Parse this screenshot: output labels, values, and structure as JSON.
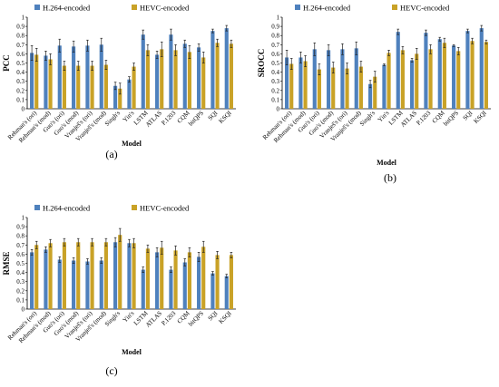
{
  "chart_data": [
    {
      "type": "bar",
      "panel_label": "(a)",
      "title": "",
      "xlabel": "Model",
      "ylabel": "PCC",
      "ylim": [
        0,
        1.0
      ],
      "yticks": [
        "0",
        "0.1",
        "0.2",
        "0.3",
        "0.4",
        "0.5",
        "0.6",
        "0.7",
        "0.8",
        "0.9",
        "1"
      ],
      "grid": false,
      "legend_position": "top",
      "categories": [
        "Rehman's (ori)",
        "Rehman's (mod)",
        "Guo's (ori)",
        "Guo's (mod)",
        "Vranješ's (ori)",
        "Vranješ's (mod)",
        "Singh's",
        "Yin's",
        "LSTM",
        "ATLAS",
        "P.1203",
        "CQM",
        "bitQPS",
        "SQI",
        "KSQI"
      ],
      "series": [
        {
          "name": "H.264-encoded",
          "color": "#4f81bd",
          "values": [
            0.61,
            0.58,
            0.69,
            0.68,
            0.69,
            0.7,
            0.25,
            0.32,
            0.81,
            0.59,
            0.81,
            0.71,
            0.67,
            0.85,
            0.88
          ],
          "errors": [
            0.08,
            0.05,
            0.07,
            0.06,
            0.06,
            0.07,
            0.04,
            0.03,
            0.05,
            0.04,
            0.06,
            0.04,
            0.04,
            0.02,
            0.03
          ]
        },
        {
          "name": "HEVC-encoded",
          "color": "#c9a227",
          "values": [
            0.59,
            0.54,
            0.47,
            0.47,
            0.47,
            0.48,
            0.22,
            0.46,
            0.64,
            0.65,
            0.64,
            0.62,
            0.56,
            0.72,
            0.71
          ],
          "errors": [
            0.07,
            0.06,
            0.05,
            0.05,
            0.05,
            0.05,
            0.06,
            0.04,
            0.06,
            0.08,
            0.06,
            0.07,
            0.06,
            0.04,
            0.04
          ]
        }
      ]
    },
    {
      "type": "bar",
      "panel_label": "(b)",
      "title": "",
      "xlabel": "Model",
      "ylabel": "SROCC",
      "ylim": [
        0,
        1.0
      ],
      "yticks": [
        "0",
        "0.1",
        "0.2",
        "0.3",
        "0.4",
        "0.5",
        "0.6",
        "0.7",
        "0.8",
        "0.9",
        "1"
      ],
      "grid": false,
      "legend_position": "top",
      "categories": [
        "Rehman's (ori)",
        "Rehman's (mod)",
        "Guo's (ori)",
        "Guo's (mod)",
        "Vranješ's (ori)",
        "Vranješ's (mod)",
        "Singh's",
        "Yin's",
        "LSTM",
        "ATLAS",
        "P.1203",
        "CQM",
        "bitQPS",
        "SQI",
        "KSQI"
      ],
      "series": [
        {
          "name": "H.264-encoded",
          "color": "#4f81bd",
          "values": [
            0.56,
            0.56,
            0.65,
            0.64,
            0.65,
            0.66,
            0.27,
            0.48,
            0.84,
            0.53,
            0.83,
            0.76,
            0.69,
            0.85,
            0.88
          ],
          "errors": [
            0.08,
            0.06,
            0.07,
            0.06,
            0.06,
            0.07,
            0.04,
            0.01,
            0.03,
            0.02,
            0.03,
            0.02,
            0.01,
            0.02,
            0.03
          ]
        },
        {
          "name": "HEVC-encoded",
          "color": "#c9a227",
          "values": [
            0.49,
            0.52,
            0.43,
            0.45,
            0.44,
            0.46,
            0.35,
            0.61,
            0.64,
            0.6,
            0.65,
            0.72,
            0.63,
            0.74,
            0.73
          ],
          "errors": [
            0.06,
            0.06,
            0.06,
            0.06,
            0.06,
            0.06,
            0.06,
            0.03,
            0.04,
            0.06,
            0.05,
            0.05,
            0.04,
            0.03,
            0.02
          ]
        }
      ]
    },
    {
      "type": "bar",
      "panel_label": "(c)",
      "title": "",
      "xlabel": "Model",
      "ylabel": "RMSE",
      "ylim": [
        0,
        1.0
      ],
      "yticks": [
        "0",
        "0.1",
        "0.2",
        "0.3",
        "0.4",
        "0.5",
        "0.6",
        "0.7",
        "0.8",
        "0.9",
        "1"
      ],
      "grid": false,
      "legend_position": "top",
      "categories": [
        "Rehman's (ori)",
        "Rehman's (mod)",
        "Guo's (ori)",
        "Guo's (mod)",
        "Vranješ's (ori)",
        "Vranješ's (mod)",
        "Singh's",
        "Yin's",
        "LSTM",
        "ATLAS",
        "P.1203",
        "CQM",
        "bitQPS",
        "SQI",
        "KSQI"
      ],
      "series": [
        {
          "name": "H.264-encoded",
          "color": "#4f81bd",
          "values": [
            0.62,
            0.65,
            0.54,
            0.53,
            0.52,
            0.53,
            0.73,
            0.72,
            0.43,
            0.62,
            0.43,
            0.51,
            0.57,
            0.39,
            0.36
          ],
          "errors": [
            0.03,
            0.03,
            0.03,
            0.03,
            0.03,
            0.03,
            0.05,
            0.04,
            0.03,
            0.05,
            0.03,
            0.04,
            0.05,
            0.02,
            0.02
          ]
        },
        {
          "name": "HEVC-encoded",
          "color": "#c9a227",
          "values": [
            0.7,
            0.72,
            0.73,
            0.73,
            0.73,
            0.73,
            0.81,
            0.72,
            0.66,
            0.67,
            0.64,
            0.62,
            0.68,
            0.59,
            0.59
          ],
          "errors": [
            0.04,
            0.04,
            0.04,
            0.04,
            0.04,
            0.04,
            0.07,
            0.05,
            0.04,
            0.07,
            0.05,
            0.05,
            0.06,
            0.04,
            0.03
          ]
        }
      ]
    }
  ]
}
